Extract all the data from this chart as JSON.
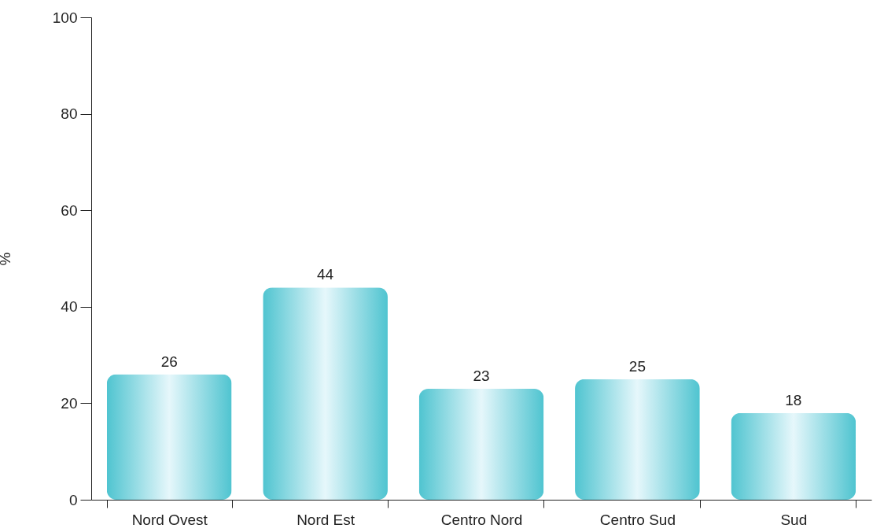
{
  "chart_data": {
    "type": "bar",
    "ylabel": "%",
    "categories": [
      "Nord Ovest",
      "Nord Est",
      "Centro Nord",
      "Centro Sud",
      "Sud"
    ],
    "values": [
      26,
      44,
      23,
      25,
      18
    ],
    "color": "#4fc4d0",
    "ylim": [
      0,
      100
    ],
    "yticks": [
      0,
      20,
      40,
      60,
      80,
      100
    ],
    "grid": false,
    "data_labels": true
  }
}
